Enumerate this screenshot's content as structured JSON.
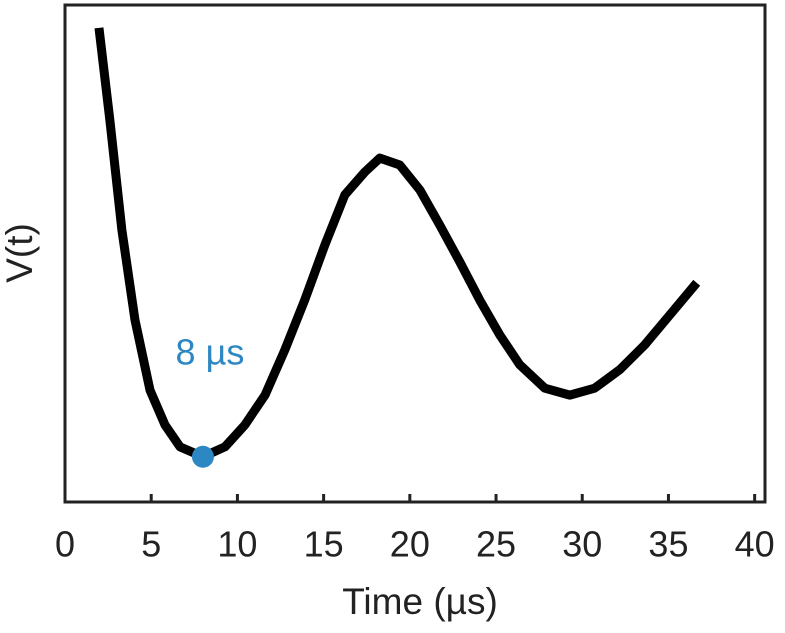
{
  "chart_data": {
    "type": "line",
    "x_label": "Time (µs)",
    "y_label": "V(t)",
    "x": [
      1.97,
      2.6,
      3.3,
      4.06,
      4.93,
      5.8,
      6.67,
      8.0,
      9.28,
      10.43,
      11.6,
      12.75,
      13.9,
      15.07,
      16.23,
      17.39,
      18.26,
      19.42,
      20.58,
      21.74,
      22.9,
      24.06,
      25.22,
      26.38,
      27.83,
      29.28,
      30.72,
      32.17,
      33.62,
      35.07,
      36.64
    ],
    "series": [
      {
        "color": "#000000",
        "values": [
          0.954,
          0.769,
          0.547,
          0.366,
          0.225,
          0.155,
          0.111,
          0.091,
          0.111,
          0.155,
          0.215,
          0.306,
          0.406,
          0.517,
          0.618,
          0.664,
          0.692,
          0.678,
          0.628,
          0.557,
          0.483,
          0.406,
          0.336,
          0.276,
          0.229,
          0.215,
          0.229,
          0.266,
          0.316,
          0.376,
          0.441
        ]
      }
    ],
    "marker": {
      "x": 8,
      "y": 0.091,
      "label": "8 µs",
      "color": "#2c87c2"
    },
    "xlim": [
      0,
      40.6
    ],
    "ylim": [
      0,
      1
    ],
    "xticks": [
      0,
      5,
      10,
      15,
      20,
      25,
      30,
      35,
      40
    ]
  }
}
